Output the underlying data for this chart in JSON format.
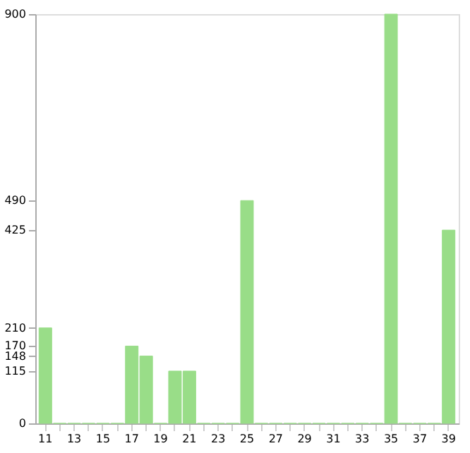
{
  "chart_data": {
    "type": "bar",
    "categories": [
      "11",
      null,
      "13",
      null,
      "15",
      null,
      "17",
      null,
      "19",
      null,
      "21",
      null,
      "23",
      null,
      "25",
      null,
      "27",
      null,
      "29",
      null,
      "31",
      null,
      "33",
      null,
      "35",
      null,
      "37",
      null,
      "39"
    ],
    "values": [
      210,
      0,
      0,
      0,
      0,
      0,
      170,
      148,
      0,
      115,
      115,
      0,
      0,
      0,
      490,
      0,
      0,
      0,
      0,
      0,
      0,
      0,
      0,
      0,
      900,
      0,
      0,
      0,
      425
    ],
    "color": "#99dd88",
    "ylim": [
      0,
      900
    ],
    "yticks": [
      0,
      115,
      148,
      170,
      210,
      425,
      490,
      900
    ],
    "grid": false
  }
}
